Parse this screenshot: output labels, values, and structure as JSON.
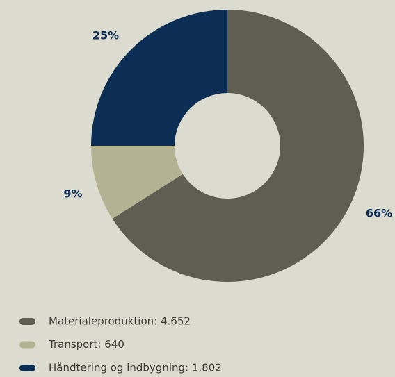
{
  "chart_data": {
    "type": "donut",
    "categories": [
      "Materialeproduktion: 4.652",
      "Transport: 640",
      "Håndtering og indbygning: 1.802"
    ],
    "values": [
      66,
      9,
      25
    ],
    "value_labels": [
      "66%",
      "9%",
      "25%"
    ],
    "colors": [
      "#5e5e52",
      "#b3b394",
      "#0c2d54"
    ]
  }
}
